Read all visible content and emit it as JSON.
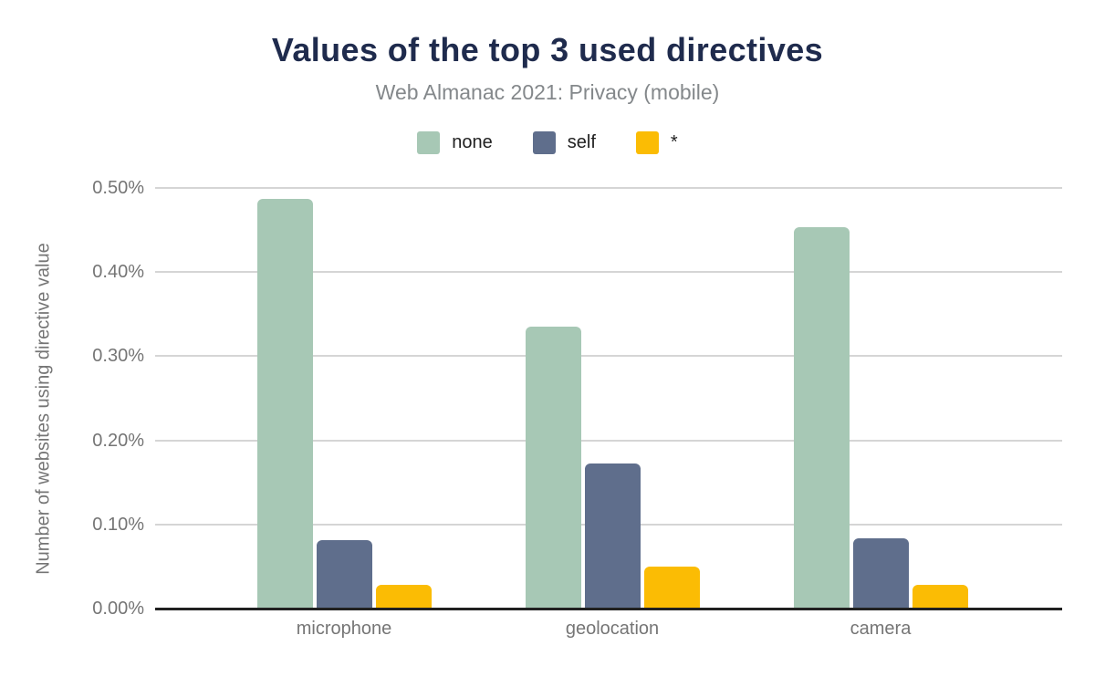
{
  "chart_data": {
    "type": "bar",
    "title": "Values of the top 3 used directives",
    "subtitle": "Web Almanac 2021: Privacy (mobile)",
    "xlabel": "",
    "ylabel": "Number of websites using directive value",
    "categories": [
      "microphone",
      "geolocation",
      "camera"
    ],
    "series": [
      {
        "name": "none",
        "color": "#a7c8b5",
        "values": [
          0.487,
          0.335,
          0.453
        ]
      },
      {
        "name": "self",
        "color": "#5f6e8c",
        "values": [
          0.081,
          0.172,
          0.083
        ]
      },
      {
        "name": "*",
        "color": "#fbbc04",
        "values": [
          0.028,
          0.05,
          0.028
        ]
      }
    ],
    "y_ticks": [
      {
        "label": "0.00%",
        "value": 0.0
      },
      {
        "label": "0.10%",
        "value": 0.1
      },
      {
        "label": "0.20%",
        "value": 0.2
      },
      {
        "label": "0.30%",
        "value": 0.3
      },
      {
        "label": "0.40%",
        "value": 0.4
      },
      {
        "label": "0.50%",
        "value": 0.5
      }
    ],
    "ylim": [
      0,
      0.5
    ],
    "unit": "%",
    "grid": true,
    "legend_position": "top"
  },
  "colors": {
    "background": "#ffffff",
    "title": "#1f2b4d",
    "subtitle": "#84888b",
    "axis_text": "#757575",
    "gridline": "#d5d5d5",
    "baseline": "#212121",
    "legend_text": "#212121"
  }
}
